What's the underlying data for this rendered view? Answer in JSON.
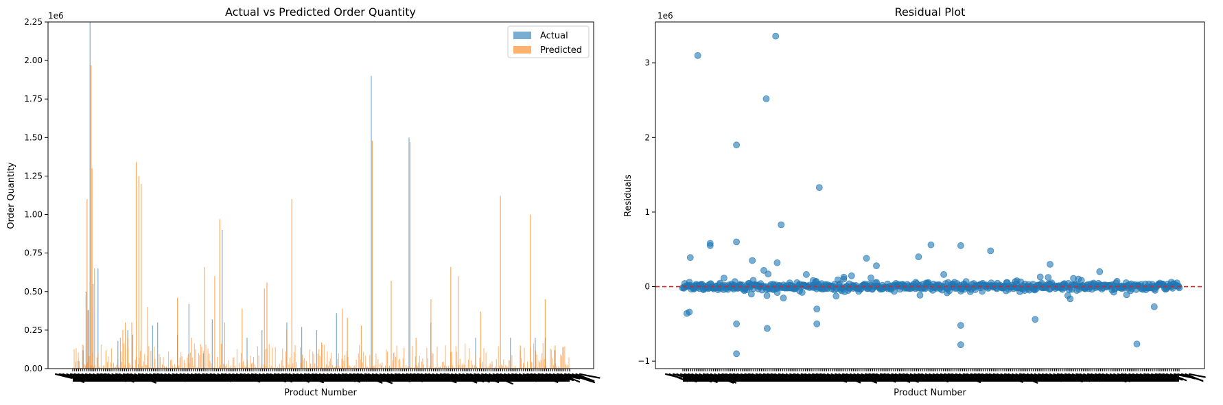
{
  "chart_data": [
    {
      "type": "bar",
      "title": "Actual vs Predicted Order Quantity",
      "xlabel": "Product Number",
      "ylabel": "Order Quantity",
      "y_offset_label": "1e6",
      "ylim": [
        0,
        2.25
      ],
      "yticks": [
        "0.00",
        "0.25",
        "0.50",
        "0.75",
        "1.00",
        "1.25",
        "1.50",
        "1.75",
        "2.00",
        "2.25"
      ],
      "grid": false,
      "legend": "top-right",
      "series": [
        {
          "name": "Actual",
          "color": "#1f77b4",
          "spikes": [
            {
              "i": 0.01,
              "v": 0.05
            },
            {
              "i": 0.02,
              "v": 0.12
            },
            {
              "i": 0.026,
              "v": 0.5
            },
            {
              "i": 0.03,
              "v": 0.38
            },
            {
              "i": 0.034,
              "v": 2.25
            },
            {
              "i": 0.04,
              "v": 0.55
            },
            {
              "i": 0.05,
              "v": 0.65
            },
            {
              "i": 0.09,
              "v": 0.18
            },
            {
              "i": 0.11,
              "v": 0.25
            },
            {
              "i": 0.12,
              "v": 0.22
            },
            {
              "i": 0.16,
              "v": 0.28
            },
            {
              "i": 0.17,
              "v": 0.3
            },
            {
              "i": 0.21,
              "v": 0.22
            },
            {
              "i": 0.233,
              "v": 0.42
            },
            {
              "i": 0.262,
              "v": 0.1
            },
            {
              "i": 0.28,
              "v": 0.32
            },
            {
              "i": 0.3,
              "v": 0.9
            },
            {
              "i": 0.35,
              "v": 0.2
            },
            {
              "i": 0.38,
              "v": 0.25
            },
            {
              "i": 0.43,
              "v": 0.3
            },
            {
              "i": 0.46,
              "v": 0.27
            },
            {
              "i": 0.49,
              "v": 0.25
            },
            {
              "i": 0.53,
              "v": 0.36
            },
            {
              "i": 0.6,
              "v": 1.9
            },
            {
              "i": 0.676,
              "v": 1.5
            },
            {
              "i": 0.72,
              "v": 0.3
            },
            {
              "i": 0.81,
              "v": 0.2
            },
            {
              "i": 0.88,
              "v": 0.2
            },
            {
              "i": 0.93,
              "v": 0.2
            },
            {
              "i": 0.95,
              "v": 0.2
            },
            {
              "i": 0.97,
              "v": 0.12
            }
          ]
        },
        {
          "name": "Predicted",
          "color": "#ff7f0e",
          "spikes": [
            {
              "i": 0.012,
              "v": 0.05
            },
            {
              "i": 0.028,
              "v": 1.1
            },
            {
              "i": 0.031,
              "v": 0.38
            },
            {
              "i": 0.036,
              "v": 1.97
            },
            {
              "i": 0.038,
              "v": 1.3
            },
            {
              "i": 0.043,
              "v": 0.65
            },
            {
              "i": 0.066,
              "v": 0.12
            },
            {
              "i": 0.095,
              "v": 0.2
            },
            {
              "i": 0.1,
              "v": 0.25
            },
            {
              "i": 0.105,
              "v": 0.3
            },
            {
              "i": 0.11,
              "v": 0.2
            },
            {
              "i": 0.118,
              "v": 0.3
            },
            {
              "i": 0.127,
              "v": 1.34
            },
            {
              "i": 0.132,
              "v": 1.25
            },
            {
              "i": 0.137,
              "v": 1.2
            },
            {
              "i": 0.15,
              "v": 0.4
            },
            {
              "i": 0.21,
              "v": 0.46
            },
            {
              "i": 0.238,
              "v": 0.2
            },
            {
              "i": 0.264,
              "v": 0.66
            },
            {
              "i": 0.285,
              "v": 0.6
            },
            {
              "i": 0.295,
              "v": 0.97
            },
            {
              "i": 0.305,
              "v": 0.3
            },
            {
              "i": 0.34,
              "v": 0.39
            },
            {
              "i": 0.385,
              "v": 0.52
            },
            {
              "i": 0.39,
              "v": 0.56
            },
            {
              "i": 0.43,
              "v": 0.25
            },
            {
              "i": 0.44,
              "v": 1.1
            },
            {
              "i": 0.5,
              "v": 0.17
            },
            {
              "i": 0.542,
              "v": 0.39
            },
            {
              "i": 0.552,
              "v": 0.33
            },
            {
              "i": 0.58,
              "v": 0.28
            },
            {
              "i": 0.602,
              "v": 1.48
            },
            {
              "i": 0.64,
              "v": 0.57
            },
            {
              "i": 0.678,
              "v": 1.47
            },
            {
              "i": 0.69,
              "v": 0.2
            },
            {
              "i": 0.72,
              "v": 0.45
            },
            {
              "i": 0.76,
              "v": 0.66
            },
            {
              "i": 0.775,
              "v": 0.6
            },
            {
              "i": 0.82,
              "v": 0.37
            },
            {
              "i": 0.86,
              "v": 1.12
            },
            {
              "i": 0.9,
              "v": 0.15
            },
            {
              "i": 0.92,
              "v": 1.0
            },
            {
              "i": 0.95,
              "v": 0.45
            },
            {
              "i": 0.97,
              "v": 0.15
            }
          ]
        }
      ]
    },
    {
      "type": "scatter",
      "title": "Residual Plot",
      "xlabel": "Product Number",
      "ylabel": "Residuals",
      "y_offset_label": "1e6",
      "ylim": [
        -1.1,
        3.55
      ],
      "yticks": [
        "−1",
        "0",
        "1",
        "2",
        "3"
      ],
      "reference_line": {
        "y": 0,
        "color": "#d62728",
        "style": "dashed"
      },
      "grid": false,
      "color": "#1f77b4",
      "outliers": [
        {
          "i": 0.03,
          "r": 3.1
        },
        {
          "i": 0.187,
          "r": 3.36
        },
        {
          "i": 0.168,
          "r": 2.52
        },
        {
          "i": 0.108,
          "r": 1.9
        },
        {
          "i": 0.275,
          "r": 1.33
        },
        {
          "i": 0.198,
          "r": 0.83
        },
        {
          "i": 0.108,
          "r": 0.6
        },
        {
          "i": 0.055,
          "r": 0.58
        },
        {
          "i": 0.055,
          "r": 0.55
        },
        {
          "i": 0.015,
          "r": 0.39
        },
        {
          "i": 0.56,
          "r": 0.55
        },
        {
          "i": 0.5,
          "r": 0.56
        },
        {
          "i": 0.475,
          "r": 0.4
        },
        {
          "i": 0.62,
          "r": 0.48
        },
        {
          "i": 0.39,
          "r": 0.28
        },
        {
          "i": 0.37,
          "r": 0.38
        },
        {
          "i": 0.008,
          "r": -0.36
        },
        {
          "i": 0.013,
          "r": -0.34
        },
        {
          "i": 0.108,
          "r": -0.5
        },
        {
          "i": 0.108,
          "r": -0.9
        },
        {
          "i": 0.17,
          "r": -0.56
        },
        {
          "i": 0.27,
          "r": -0.5
        },
        {
          "i": 0.27,
          "r": -0.3
        },
        {
          "i": 0.56,
          "r": -0.78
        },
        {
          "i": 0.56,
          "r": -0.52
        },
        {
          "i": 0.915,
          "r": -0.77
        },
        {
          "i": 0.95,
          "r": -0.27
        },
        {
          "i": 0.71,
          "r": -0.44
        },
        {
          "i": 0.14,
          "r": 0.35
        },
        {
          "i": 0.19,
          "r": 0.32
        },
        {
          "i": 0.84,
          "r": 0.2
        },
        {
          "i": 0.74,
          "r": 0.3
        }
      ]
    }
  ]
}
